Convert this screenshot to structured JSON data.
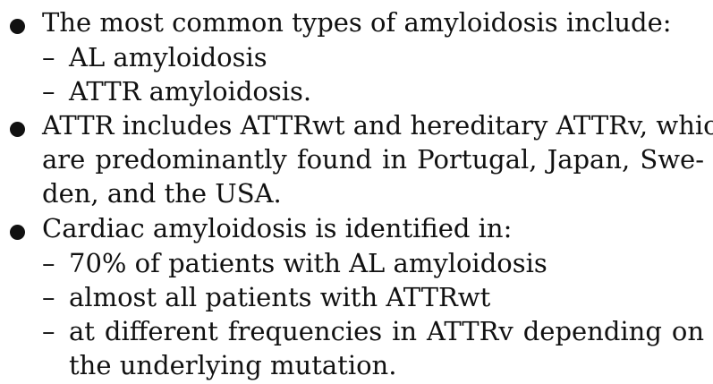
{
  "bullets": [
    {
      "text": "The most common types of amyloidosis include:",
      "subitems": [
        "AL amyloidosis",
        "ATTR amyloidosis."
      ]
    },
    {
      "lines": [
        "ATTR includes ATTRwt and hereditary ATTRv, which",
        "are predominantly found in Portugal, Japan, Swe-",
        "den, and the USA."
      ]
    },
    {
      "text": "Cardiac amyloidosis is identified in:",
      "subitems": [
        "70% of patients with AL amyloidosis",
        "almost all patients with ATTRwt"
      ],
      "last_subitem_lines": [
        "at different frequencies in ATTRv depending on",
        "the underlying mutation."
      ]
    }
  ],
  "dash_symbol": "–"
}
